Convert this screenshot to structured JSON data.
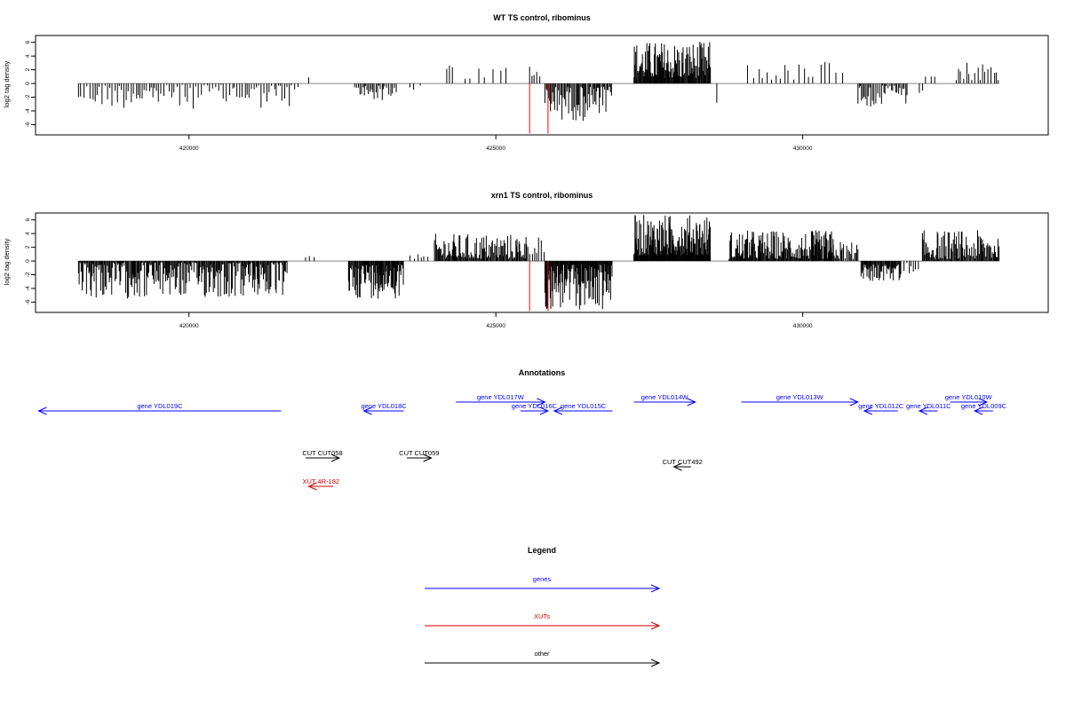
{
  "chart_data": [
    {
      "type": "bar",
      "title": "WT TS control, ribominus",
      "xlabel": "",
      "ylabel": "log2 tag density",
      "xlim": [
        417500,
        434000
      ],
      "ylim": [
        -7.5,
        7
      ],
      "x_ticks": [
        420000,
        425000,
        430000
      ],
      "x_tick_labels": [
        "420000",
        "425000",
        "430000"
      ],
      "y_ticks": [
        -6,
        -4,
        -2,
        0,
        2,
        4,
        6
      ],
      "y_tick_labels": [
        "-6",
        "-4",
        "-2",
        "0",
        "2",
        "4",
        "6"
      ],
      "baseline_range": [
        418200,
        433200
      ],
      "red_marks": [
        {
          "x": 425550,
          "value": -7.3
        },
        {
          "x": 425850,
          "value": -7.3
        }
      ],
      "segments": [
        {
          "start": 418200,
          "end": 421800,
          "sign": -1,
          "spacing": 40,
          "min": 0.2,
          "max": 3.7
        },
        {
          "start": 421950,
          "end": 421980,
          "sign": 1,
          "spacing": 30,
          "min": 0.8,
          "max": 1.0
        },
        {
          "start": 422700,
          "end": 423400,
          "sign": -1,
          "spacing": 25,
          "min": 0.3,
          "max": 2.5
        },
        {
          "start": 423600,
          "end": 423800,
          "sign": -1,
          "spacing": 90,
          "min": 0.3,
          "max": 1.0
        },
        {
          "start": 424200,
          "end": 424300,
          "sign": 1,
          "spacing": 35,
          "min": 2.0,
          "max": 3.0
        },
        {
          "start": 424500,
          "end": 425300,
          "sign": 1,
          "spacing": 110,
          "min": 0.5,
          "max": 2.9
        },
        {
          "start": 425550,
          "end": 425750,
          "sign": 1,
          "spacing": 50,
          "min": 1.0,
          "max": 3.2
        },
        {
          "start": 425800,
          "end": 426900,
          "sign": -1,
          "spacing": 18,
          "min": 0.5,
          "max": 5.5
        },
        {
          "start": 427250,
          "end": 428500,
          "sign": 1,
          "spacing": 11,
          "min": 0.8,
          "max": 6.2
        },
        {
          "start": 428600,
          "end": 428650,
          "sign": -1,
          "spacing": 50,
          "min": 2.8,
          "max": 3.0
        },
        {
          "start": 429100,
          "end": 430200,
          "sign": 1,
          "spacing": 75,
          "min": 0.5,
          "max": 3.0
        },
        {
          "start": 430300,
          "end": 430700,
          "sign": 1,
          "spacing": 90,
          "min": 0.4,
          "max": 3.5
        },
        {
          "start": 430900,
          "end": 431700,
          "sign": -1,
          "spacing": 25,
          "min": 0.3,
          "max": 3.5
        },
        {
          "start": 431900,
          "end": 432000,
          "sign": -1,
          "spacing": 50,
          "min": 1.0,
          "max": 2.0
        },
        {
          "start": 432000,
          "end": 432200,
          "sign": 1,
          "spacing": 70,
          "min": 1.0,
          "max": 2.0
        },
        {
          "start": 432500,
          "end": 433200,
          "sign": 1,
          "spacing": 45,
          "min": 0.5,
          "max": 3.5
        }
      ]
    },
    {
      "type": "bar",
      "title": "xrn1 TS control, ribominus",
      "xlabel": "",
      "ylabel": "log2 tag density",
      "xlim": [
        417500,
        434000
      ],
      "ylim": [
        -7.5,
        7
      ],
      "x_ticks": [
        420000,
        425000,
        430000
      ],
      "x_tick_labels": [
        "420000",
        "425000",
        "430000"
      ],
      "y_ticks": [
        -6,
        -4,
        -2,
        0,
        2,
        4,
        6
      ],
      "y_tick_labels": [
        "-6",
        "-4",
        "-2",
        "0",
        "2",
        "4",
        "6"
      ],
      "baseline_range": [
        418200,
        433200
      ],
      "red_marks": [
        {
          "x": 425550,
          "value": -7.3
        },
        {
          "x": 425850,
          "value": -7.3
        }
      ],
      "segments": [
        {
          "start": 418200,
          "end": 421600,
          "sign": -1,
          "spacing": 14,
          "min": 0.2,
          "max": 5.5
        },
        {
          "start": 421900,
          "end": 422100,
          "sign": 1,
          "spacing": 80,
          "min": 0.5,
          "max": 1.5
        },
        {
          "start": 422600,
          "end": 423500,
          "sign": -1,
          "spacing": 12,
          "min": 0.5,
          "max": 5.5
        },
        {
          "start": 423600,
          "end": 423900,
          "sign": 1,
          "spacing": 60,
          "min": 0.3,
          "max": 1.0
        },
        {
          "start": 424000,
          "end": 425500,
          "sign": 1,
          "spacing": 14,
          "min": 0.3,
          "max": 4.0
        },
        {
          "start": 425500,
          "end": 425800,
          "sign": 1,
          "spacing": 35,
          "min": 1.0,
          "max": 5.0
        },
        {
          "start": 425800,
          "end": 426900,
          "sign": -1,
          "spacing": 10,
          "min": 0.5,
          "max": 7.3
        },
        {
          "start": 427250,
          "end": 428500,
          "sign": 1,
          "spacing": 8,
          "min": 0.8,
          "max": 6.8
        },
        {
          "start": 428800,
          "end": 430500,
          "sign": 1,
          "spacing": 12,
          "min": 0.3,
          "max": 4.5
        },
        {
          "start": 430500,
          "end": 430900,
          "sign": 1,
          "spacing": 20,
          "min": 0.3,
          "max": 3.0
        },
        {
          "start": 430950,
          "end": 431600,
          "sign": -1,
          "spacing": 12,
          "min": 0.5,
          "max": 3.0
        },
        {
          "start": 431650,
          "end": 431900,
          "sign": -1,
          "spacing": 40,
          "min": 0.3,
          "max": 2.0
        },
        {
          "start": 431950,
          "end": 433200,
          "sign": 1,
          "spacing": 14,
          "min": 0.3,
          "max": 4.5
        }
      ]
    }
  ],
  "annotations": {
    "title": "Annotations",
    "xlim": [
      417500,
      434000
    ],
    "features": [
      {
        "label": "gene YDL019C",
        "start": 421500,
        "end": 417550,
        "row": 0,
        "color": "#0000ff"
      },
      {
        "label": "gene YDL018C",
        "start": 423500,
        "end": 422850,
        "row": 0,
        "color": "#0000ff"
      },
      {
        "label": "gene YDL017W",
        "start": 424350,
        "end": 425800,
        "row": 1,
        "color": "#0000ff"
      },
      {
        "label": "gene YDL016C",
        "start": 425400,
        "end": 425850,
        "row": 0,
        "color": "#0000ff"
      },
      {
        "label": "gene YDL015C",
        "start": 426900,
        "end": 425950,
        "row": 0,
        "color": "#0000ff"
      },
      {
        "label": "gene YDL014W",
        "start": 427250,
        "end": 428250,
        "row": 1,
        "color": "#0000ff"
      },
      {
        "label": "gene YDL013W",
        "start": 429000,
        "end": 430900,
        "row": 1,
        "color": "#0000ff"
      },
      {
        "label": "gene YDL012C",
        "start": 431550,
        "end": 431000,
        "row": 0,
        "color": "#0000ff"
      },
      {
        "label": "gene YDL010W",
        "start": 432400,
        "end": 433000,
        "row": 1,
        "color": "#0000ff"
      },
      {
        "label": "gene YDL011C",
        "start": 432200,
        "end": 431900,
        "row": 0,
        "color": "#0000ff"
      },
      {
        "label": "gene YDL009C",
        "start": 433100,
        "end": 432800,
        "row": 0,
        "color": "#0000ff"
      },
      {
        "label": "CUT CUT058",
        "start": 421900,
        "end": 422450,
        "row": 2,
        "color": "#000000"
      },
      {
        "label": "CUT CUT059",
        "start": 423550,
        "end": 423950,
        "row": 2,
        "color": "#000000"
      },
      {
        "label": "CUT CUT492",
        "start": 428180,
        "end": 427900,
        "row": 3,
        "color": "#000000"
      },
      {
        "label": "XUT 4R-182",
        "start": 422350,
        "end": 421950,
        "row": 4,
        "color": "#cc0000"
      }
    ]
  },
  "legend": {
    "title": "Legend",
    "items": [
      {
        "label": "genes",
        "color": "#0000ff"
      },
      {
        "label": "XUTs",
        "color": "#cc0000"
      },
      {
        "label": "other",
        "color": "#000000"
      }
    ]
  }
}
